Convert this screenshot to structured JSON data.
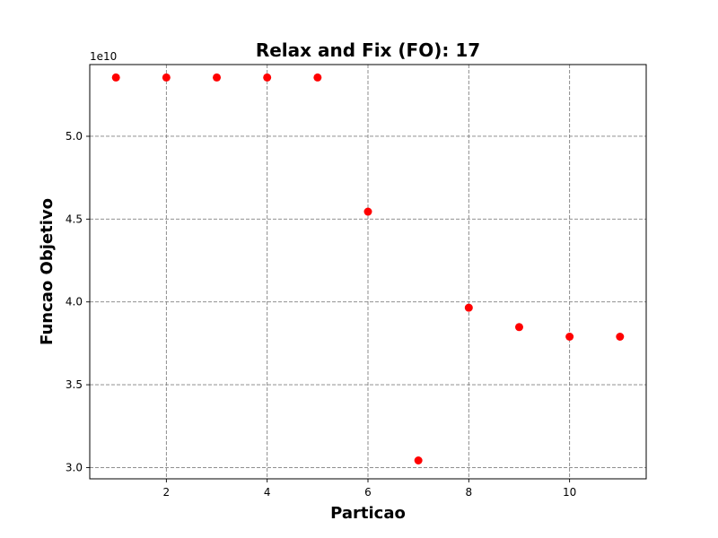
{
  "chart_data": {
    "type": "scatter",
    "title": "Relax and Fix (FO): 17",
    "xlabel": "Particao",
    "ylabel": "Funcao Objetivo",
    "y_offset_label": "1e10",
    "x_ticks": [
      2,
      4,
      6,
      8,
      10
    ],
    "x_tick_labels": [
      "2",
      "4",
      "6",
      "8",
      "10"
    ],
    "y_ticks": [
      3.0,
      3.5,
      4.0,
      4.5,
      5.0
    ],
    "y_tick_labels": [
      "3.0",
      "3.5",
      "4.0",
      "4.5",
      "5.0"
    ],
    "xlim": [
      0.48,
      11.52
    ],
    "ylim": [
      2.932,
      5.433
    ],
    "grid": true,
    "series": [
      {
        "color": "#ff0000",
        "x": [
          1,
          2,
          3,
          4,
          5,
          6,
          7,
          8,
          9,
          10,
          11
        ],
        "y": [
          5.355,
          5.355,
          5.355,
          5.355,
          5.355,
          4.545,
          3.043,
          3.965,
          3.848,
          3.79,
          3.79
        ]
      }
    ]
  }
}
